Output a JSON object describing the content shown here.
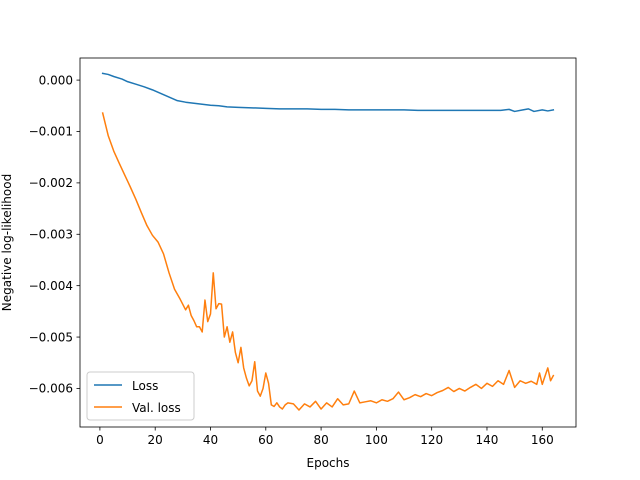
{
  "chart_data": {
    "type": "line",
    "title": "",
    "xlabel": "Epochs",
    "ylabel": "Negative log-likelihood",
    "xlim": [
      -7.2,
      172.2
    ],
    "ylim": [
      -0.00675,
      0.00043
    ],
    "xticks": [
      0,
      20,
      40,
      60,
      80,
      100,
      120,
      140,
      160
    ],
    "xtick_labels": [
      "0",
      "20",
      "40",
      "60",
      "80",
      "100",
      "120",
      "140",
      "160"
    ],
    "yticks": [
      0.0,
      -0.001,
      -0.002,
      -0.003,
      -0.004,
      -0.005,
      -0.006
    ],
    "ytick_labels": [
      "0.000",
      "−0.001",
      "−0.002",
      "−0.003",
      "−0.004",
      "−0.005",
      "−0.006"
    ],
    "grid": false,
    "legend_position": "lower-left",
    "series": [
      {
        "name": "Loss",
        "color": "#1f77b4",
        "points": [
          [
            1,
            0.00013
          ],
          [
            3,
            0.00011
          ],
          [
            5,
            7e-05
          ],
          [
            8,
            2e-05
          ],
          [
            10,
            -3e-05
          ],
          [
            13,
            -8e-05
          ],
          [
            16,
            -0.00013
          ],
          [
            19,
            -0.00019
          ],
          [
            22,
            -0.00026
          ],
          [
            25,
            -0.00033
          ],
          [
            28,
            -0.0004
          ],
          [
            31,
            -0.00043
          ],
          [
            34,
            -0.00045
          ],
          [
            37,
            -0.00047
          ],
          [
            40,
            -0.00049
          ],
          [
            43,
            -0.0005
          ],
          [
            46,
            -0.00052
          ],
          [
            50,
            -0.00053
          ],
          [
            55,
            -0.00054
          ],
          [
            60,
            -0.00055
          ],
          [
            65,
            -0.00056
          ],
          [
            70,
            -0.00056
          ],
          [
            75,
            -0.00056
          ],
          [
            80,
            -0.00057
          ],
          [
            85,
            -0.00057
          ],
          [
            90,
            -0.00058
          ],
          [
            95,
            -0.00058
          ],
          [
            100,
            -0.00058
          ],
          [
            105,
            -0.00058
          ],
          [
            110,
            -0.00058
          ],
          [
            115,
            -0.00059
          ],
          [
            120,
            -0.00059
          ],
          [
            125,
            -0.00059
          ],
          [
            130,
            -0.00059
          ],
          [
            135,
            -0.00059
          ],
          [
            140,
            -0.00059
          ],
          [
            145,
            -0.00059
          ],
          [
            148,
            -0.00057
          ],
          [
            150,
            -0.00061
          ],
          [
            153,
            -0.00058
          ],
          [
            155,
            -0.00056
          ],
          [
            157,
            -0.00061
          ],
          [
            160,
            -0.00058
          ],
          [
            162,
            -0.0006
          ],
          [
            164,
            -0.00058
          ]
        ]
      },
      {
        "name": "Val. loss",
        "color": "#ff7f0e",
        "points": [
          [
            1,
            -0.00064
          ],
          [
            3,
            -0.00108
          ],
          [
            5,
            -0.00138
          ],
          [
            7,
            -0.00162
          ],
          [
            9,
            -0.00185
          ],
          [
            11,
            -0.00208
          ],
          [
            13,
            -0.00232
          ],
          [
            15,
            -0.00258
          ],
          [
            17,
            -0.00283
          ],
          [
            19,
            -0.00302
          ],
          [
            21,
            -0.00315
          ],
          [
            23,
            -0.00338
          ],
          [
            25,
            -0.00375
          ],
          [
            27,
            -0.00407
          ],
          [
            29,
            -0.00426
          ],
          [
            31,
            -0.00447
          ],
          [
            32,
            -0.00438
          ],
          [
            33,
            -0.00458
          ],
          [
            34,
            -0.00468
          ],
          [
            35,
            -0.0048
          ],
          [
            36,
            -0.0048
          ],
          [
            37,
            -0.0049
          ],
          [
            38,
            -0.00428
          ],
          [
            39,
            -0.0047
          ],
          [
            40,
            -0.00455
          ],
          [
            41,
            -0.00375
          ],
          [
            42,
            -0.00445
          ],
          [
            43,
            -0.00435
          ],
          [
            44,
            -0.00436
          ],
          [
            45,
            -0.005
          ],
          [
            46,
            -0.0048
          ],
          [
            47,
            -0.0051
          ],
          [
            48,
            -0.0049
          ],
          [
            49,
            -0.0053
          ],
          [
            50,
            -0.0055
          ],
          [
            51,
            -0.0052
          ],
          [
            52,
            -0.0056
          ],
          [
            53,
            -0.0058
          ],
          [
            54,
            -0.00595
          ],
          [
            55,
            -0.00585
          ],
          [
            56,
            -0.00548
          ],
          [
            57,
            -0.00605
          ],
          [
            58,
            -0.00615
          ],
          [
            59,
            -0.006
          ],
          [
            60,
            -0.0057
          ],
          [
            61,
            -0.0059
          ],
          [
            62,
            -0.00632
          ],
          [
            63,
            -0.00635
          ],
          [
            64,
            -0.00628
          ],
          [
            65,
            -0.00636
          ],
          [
            66,
            -0.0064
          ],
          [
            67,
            -0.00632
          ],
          [
            68,
            -0.00628
          ],
          [
            70,
            -0.0063
          ],
          [
            72,
            -0.00642
          ],
          [
            74,
            -0.0063
          ],
          [
            76,
            -0.00636
          ],
          [
            78,
            -0.00625
          ],
          [
            80,
            -0.0064
          ],
          [
            82,
            -0.00628
          ],
          [
            84,
            -0.00636
          ],
          [
            86,
            -0.0062
          ],
          [
            88,
            -0.00632
          ],
          [
            90,
            -0.0063
          ],
          [
            92,
            -0.00605
          ],
          [
            94,
            -0.00628
          ],
          [
            96,
            -0.00626
          ],
          [
            98,
            -0.00624
          ],
          [
            100,
            -0.00628
          ],
          [
            102,
            -0.00622
          ],
          [
            104,
            -0.00625
          ],
          [
            106,
            -0.0062
          ],
          [
            108,
            -0.00607
          ],
          [
            110,
            -0.00622
          ],
          [
            112,
            -0.00618
          ],
          [
            114,
            -0.00612
          ],
          [
            116,
            -0.00616
          ],
          [
            118,
            -0.0061
          ],
          [
            120,
            -0.00614
          ],
          [
            122,
            -0.00608
          ],
          [
            124,
            -0.00604
          ],
          [
            126,
            -0.00598
          ],
          [
            128,
            -0.00606
          ],
          [
            130,
            -0.006
          ],
          [
            132,
            -0.00605
          ],
          [
            134,
            -0.00598
          ],
          [
            136,
            -0.00592
          ],
          [
            138,
            -0.006
          ],
          [
            140,
            -0.0059
          ],
          [
            142,
            -0.00596
          ],
          [
            144,
            -0.00585
          ],
          [
            146,
            -0.00592
          ],
          [
            148,
            -0.00565
          ],
          [
            150,
            -0.00598
          ],
          [
            152,
            -0.00585
          ],
          [
            154,
            -0.0059
          ],
          [
            156,
            -0.00586
          ],
          [
            158,
            -0.00592
          ],
          [
            159,
            -0.0057
          ],
          [
            160,
            -0.00592
          ],
          [
            162,
            -0.0056
          ],
          [
            163,
            -0.00585
          ],
          [
            164,
            -0.00575
          ]
        ]
      }
    ]
  }
}
